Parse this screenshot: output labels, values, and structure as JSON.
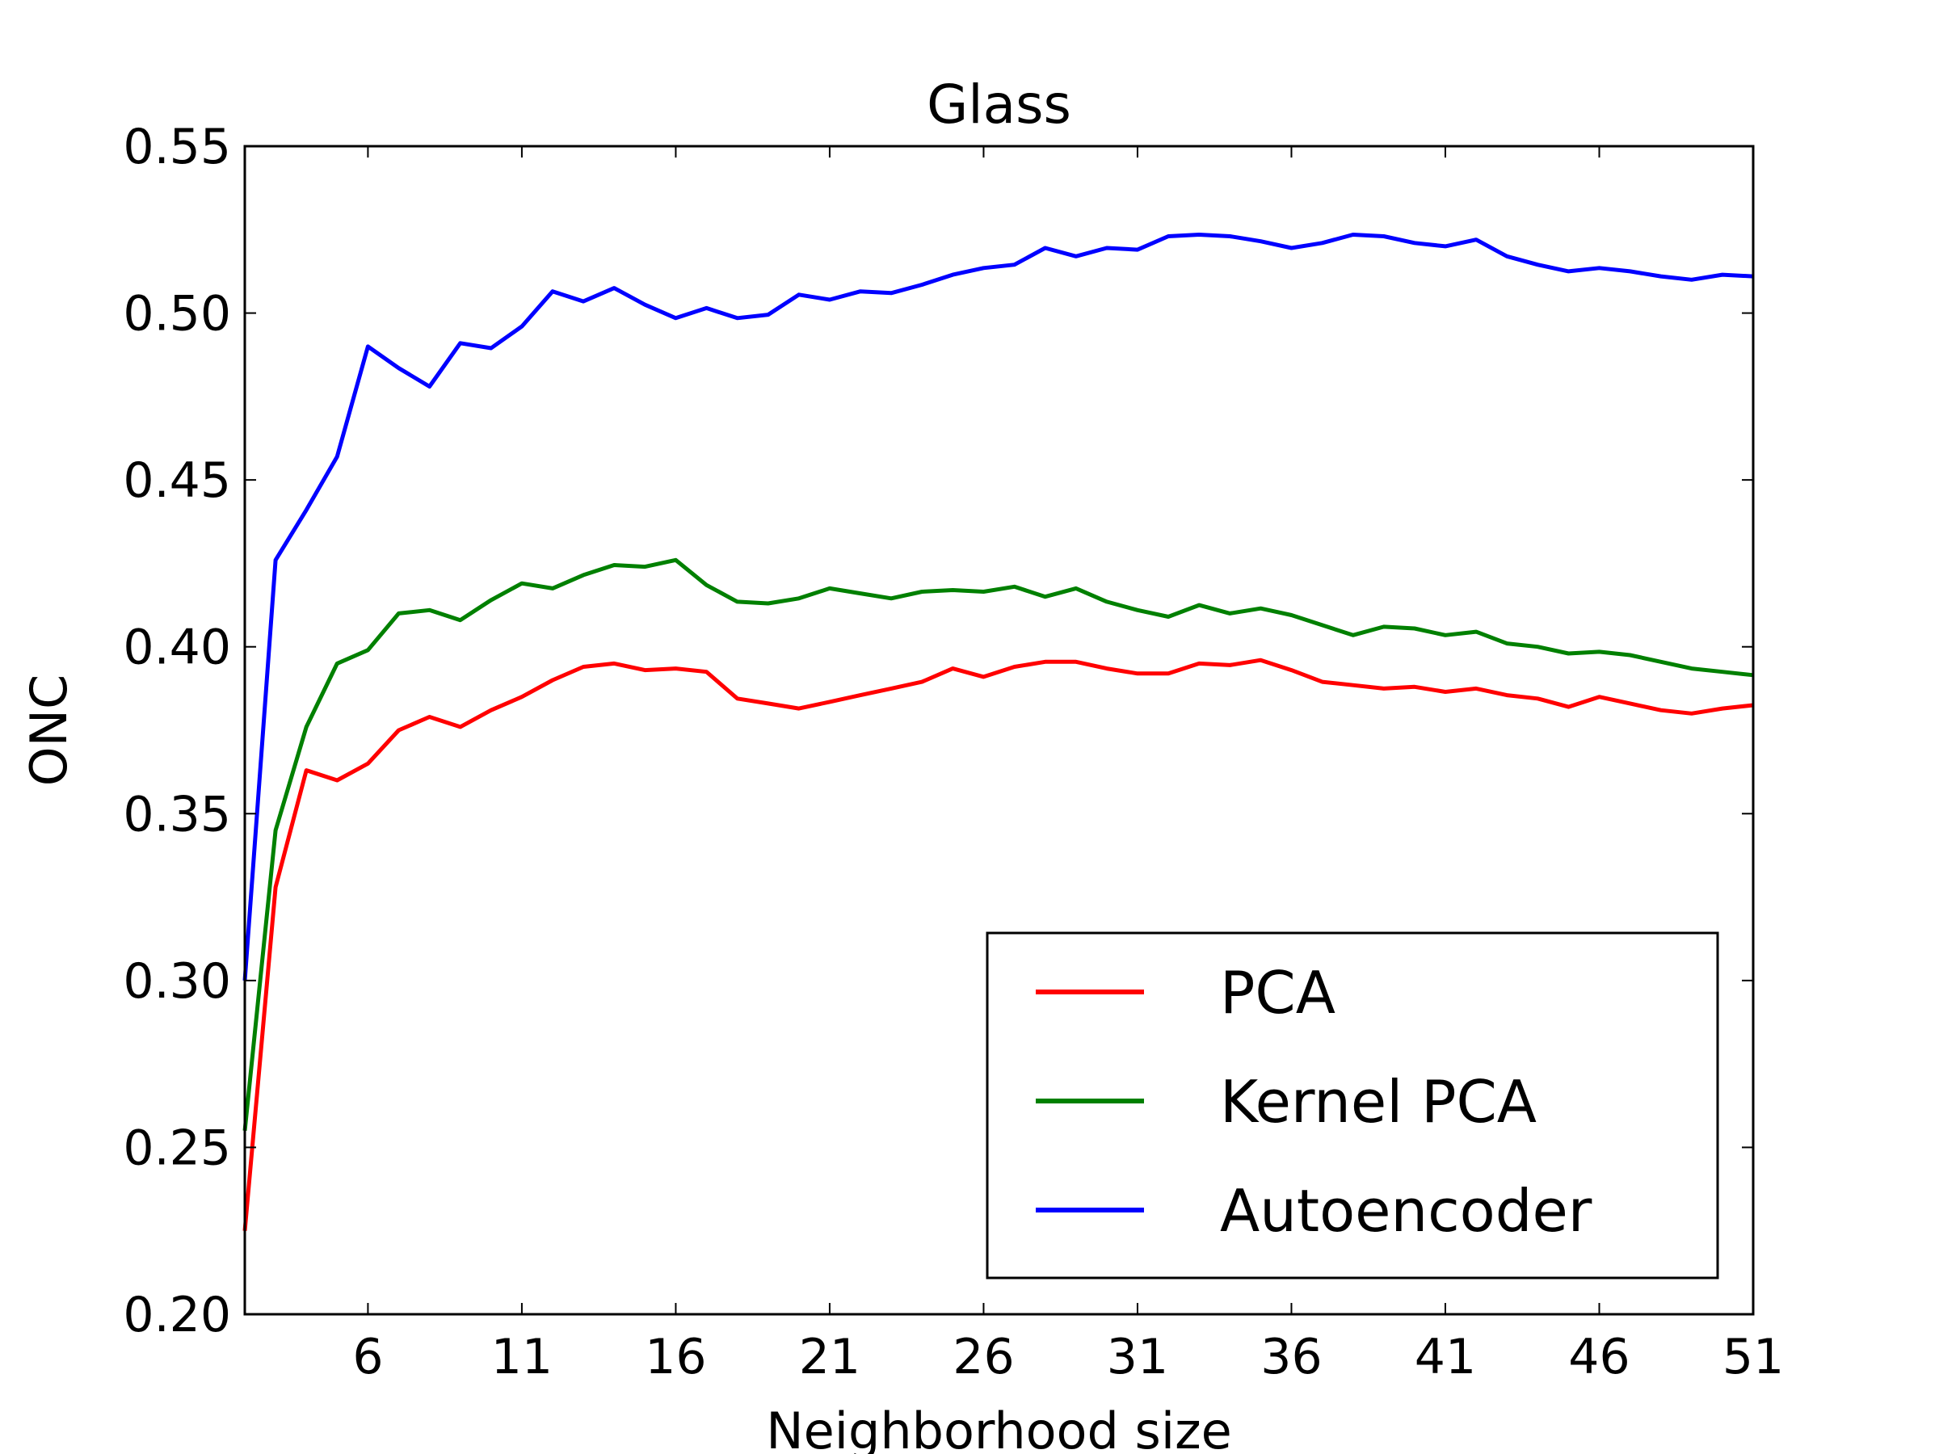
{
  "chart_data": {
    "type": "line",
    "title": "Glass",
    "xlabel": "Neighborhood size",
    "ylabel": "ONC",
    "xlim": [
      2,
      51
    ],
    "ylim": [
      0.2,
      0.55
    ],
    "xticks": [
      6,
      11,
      16,
      21,
      26,
      31,
      36,
      41,
      46,
      51
    ],
    "yticks": [
      0.2,
      0.25,
      0.3,
      0.35,
      0.4,
      0.45,
      0.5,
      0.55
    ],
    "xtick_labels": [
      "6",
      "11",
      "16",
      "21",
      "26",
      "31",
      "36",
      "41",
      "46",
      "51"
    ],
    "ytick_labels": [
      "0.20",
      "0.25",
      "0.30",
      "0.35",
      "0.40",
      "0.45",
      "0.50",
      "0.55"
    ],
    "grid": false,
    "legend_position": "lower-right",
    "x": [
      2,
      3,
      4,
      5,
      6,
      7,
      8,
      9,
      10,
      11,
      12,
      13,
      14,
      15,
      16,
      17,
      18,
      19,
      20,
      21,
      22,
      23,
      24,
      25,
      26,
      27,
      28,
      29,
      30,
      31,
      32,
      33,
      34,
      35,
      36,
      37,
      38,
      39,
      40,
      41,
      42,
      43,
      44,
      45,
      46,
      47,
      48,
      49,
      50,
      51
    ],
    "series": [
      {
        "name": "PCA",
        "color": "#ff0000",
        "values": [
          0.225,
          0.328,
          0.363,
          0.36,
          0.365,
          0.375,
          0.379,
          0.376,
          0.381,
          0.385,
          0.39,
          0.394,
          0.395,
          0.393,
          0.3935,
          0.3925,
          0.3845,
          0.383,
          0.3815,
          0.3835,
          0.3855,
          0.3875,
          0.3895,
          0.3935,
          0.391,
          0.394,
          0.3955,
          0.3955,
          0.3935,
          0.392,
          0.392,
          0.395,
          0.3945,
          0.396,
          0.393,
          0.3895,
          0.3885,
          0.3875,
          0.388,
          0.3865,
          0.3875,
          0.3855,
          0.3845,
          0.382,
          0.385,
          0.383,
          0.381,
          0.38,
          0.3815,
          0.3825
        ]
      },
      {
        "name": "Kernel PCA",
        "color": "#008000",
        "values": [
          0.255,
          0.345,
          0.376,
          0.395,
          0.399,
          0.41,
          0.411,
          0.408,
          0.414,
          0.419,
          0.4175,
          0.4215,
          0.4245,
          0.424,
          0.426,
          0.4185,
          0.4135,
          0.413,
          0.4145,
          0.4175,
          0.416,
          0.4145,
          0.4165,
          0.417,
          0.4165,
          0.418,
          0.415,
          0.4175,
          0.4135,
          0.411,
          0.409,
          0.4125,
          0.41,
          0.4115,
          0.4095,
          0.4065,
          0.4035,
          0.406,
          0.4055,
          0.4035,
          0.4045,
          0.401,
          0.4,
          0.398,
          0.3985,
          0.3975,
          0.3955,
          0.3935,
          0.3925,
          0.3915
        ]
      },
      {
        "name": "Autoencoder",
        "color": "#0000ff",
        "values": [
          0.3,
          0.426,
          0.441,
          0.457,
          0.49,
          0.4835,
          0.478,
          0.491,
          0.4895,
          0.496,
          0.5065,
          0.5035,
          0.5075,
          0.5025,
          0.4985,
          0.5015,
          0.4985,
          0.4995,
          0.5055,
          0.504,
          0.5065,
          0.506,
          0.5085,
          0.5115,
          0.5135,
          0.5145,
          0.5195,
          0.517,
          0.5195,
          0.519,
          0.523,
          0.5235,
          0.523,
          0.5215,
          0.5195,
          0.521,
          0.5235,
          0.523,
          0.521,
          0.52,
          0.522,
          0.517,
          0.5145,
          0.5125,
          0.5135,
          0.5125,
          0.511,
          0.51,
          0.5115,
          0.511
        ]
      }
    ]
  }
}
